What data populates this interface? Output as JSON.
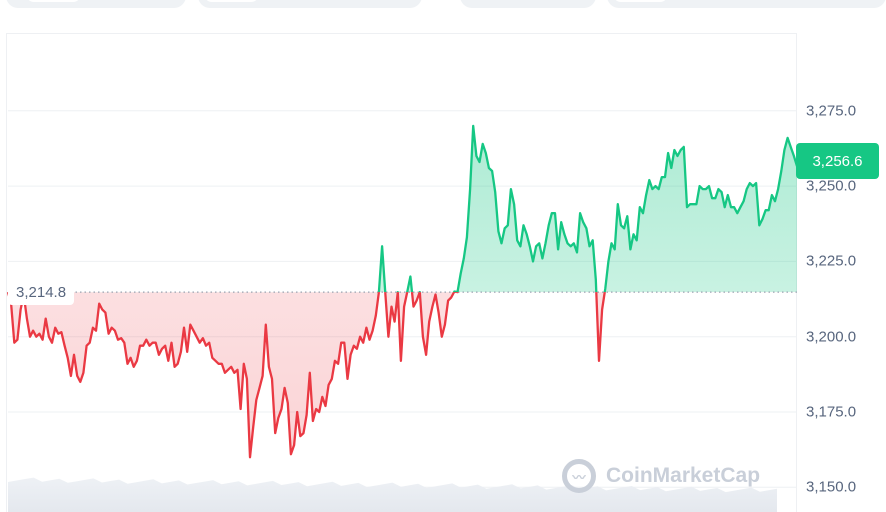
{
  "chart_data": {
    "type": "area",
    "y_ticks": [
      "3,275.0",
      "3,250.0",
      "3,225.0",
      "3,200.0",
      "3,175.0",
      "3,150.0"
    ],
    "y_tick_values": [
      3275,
      3250,
      3225,
      3200,
      3175,
      3150
    ],
    "ylim": [
      3141.8,
      3300.5
    ],
    "baseline_label": "3,214.8",
    "baseline_value": 3214.8,
    "current_price_label": "3,256.6",
    "current_price_value": 3256.6,
    "grid": true,
    "series": [
      {
        "values": [
          3214.8,
          3211.0,
          3198.0,
          3199.0,
          3209.0,
          3214.0,
          3206.0,
          3200.0,
          3202.0,
          3200.0,
          3201.0,
          3199.0,
          3206.0,
          3200.0,
          3198.0,
          3203.0,
          3201.0,
          3201.5,
          3197.0,
          3193.0,
          3187.0,
          3194.0,
          3187.0,
          3185.0,
          3188.0,
          3197.0,
          3198.0,
          3203.0,
          3202.0,
          3211.0,
          3209.0,
          3208.0,
          3201.0,
          3203.0,
          3202.0,
          3199.0,
          3199.5,
          3198.0,
          3191.0,
          3193.0,
          3190.0,
          3192.0,
          3197.0,
          3197.0,
          3199.0,
          3197.0,
          3198.0,
          3198.0,
          3194.0,
          3196.0,
          3197.0,
          3192.0,
          3198.0,
          3190.0,
          3191.0,
          3195.0,
          3203.0,
          3195.0,
          3204.0,
          3202.0,
          3200.0,
          3198.0,
          3199.5,
          3197.0,
          3198.0,
          3193.0,
          3192.0,
          3191.0,
          3191.0,
          3188.0,
          3189.0,
          3190.0,
          3188.0,
          3189.0,
          3176.0,
          3191.0,
          3186.0,
          3160.0,
          3170.0,
          3179.0,
          3183.0,
          3187.0,
          3204.0,
          3190.0,
          3186.0,
          3168.0,
          3173.0,
          3176.0,
          3183.0,
          3178.0,
          3161.0,
          3164.0,
          3175.0,
          3167.0,
          3168.0,
          3174.0,
          3188.0,
          3172.0,
          3176.0,
          3175.0,
          3180.0,
          3177.0,
          3184.0,
          3186.0,
          3192.0,
          3191.0,
          3198.0,
          3198.0,
          3186.0,
          3194.0,
          3197.0,
          3196.0,
          3200.0,
          3198.0,
          3203.0,
          3199.0,
          3202.0,
          3207.0,
          3214.8,
          3230.0,
          3215.0,
          3200.0,
          3210.0,
          3205.0,
          3214.8,
          3192.0,
          3210.0,
          3214.8,
          3220.0,
          3210.0,
          3212.0,
          3214.8,
          3200.0,
          3194.0,
          3205.0,
          3210.0,
          3214.0,
          3208.0,
          3200.0,
          3204.0,
          3212.0,
          3213.0,
          3215.0,
          3214.8,
          3221.0,
          3226.0,
          3233.0,
          3249.0,
          3270.0,
          3260.0,
          3258.0,
          3264.0,
          3261.0,
          3256.0,
          3255.0,
          3248.0,
          3235.0,
          3231.0,
          3236.0,
          3237.0,
          3249.0,
          3244.0,
          3232.0,
          3230.0,
          3237.0,
          3234.0,
          3230.0,
          3225.0,
          3230.0,
          3231.0,
          3226.0,
          3231.0,
          3237.0,
          3241.0,
          3241.0,
          3229.0,
          3238.0,
          3234.0,
          3231.0,
          3230.0,
          3231.0,
          3228.0,
          3241.0,
          3238.0,
          3236.0,
          3230.0,
          3232.0,
          3219.0,
          3192.0,
          3209.0,
          3216.0,
          3225.0,
          3231.0,
          3229.0,
          3244.0,
          3237.0,
          3236.0,
          3240.0,
          3229.0,
          3234.0,
          3232.0,
          3243.0,
          3241.0,
          3247.0,
          3252.0,
          3249.0,
          3250.0,
          3249.0,
          3253.0,
          3253.0,
          3261.0,
          3256.0,
          3262.0,
          3260.0,
          3262.0,
          3263.0,
          3243.0,
          3244.0,
          3244.0,
          3244.0,
          3250.0,
          3249.0,
          3249.0,
          3250.0,
          3246.0,
          3246.0,
          3249.0,
          3248.0,
          3243.0,
          3247.0,
          3243.0,
          3243.0,
          3241.0,
          3243.0,
          3245.0,
          3249.0,
          3251.0,
          3250.0,
          3251.0,
          3237.0,
          3239.0,
          3242.0,
          3242.0,
          3247.0,
          3245.0,
          3249.0,
          3255.0,
          3262.0,
          3266.0,
          3263.0,
          3260.0,
          3256.6
        ]
      }
    ],
    "colors": {
      "up": "#16c784",
      "down": "#ea3943",
      "grid": "#eef0f3",
      "axis_text": "#58667e"
    },
    "watermark": "CoinMarketCap"
  }
}
